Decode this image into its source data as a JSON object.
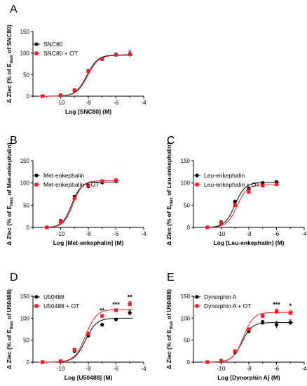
{
  "chart_data": [
    {
      "panel": "A",
      "type": "scatter",
      "xlabel": "Log [SNC80] (M)",
      "ylabel_main": "Δ Zlec (% of E",
      "ylabel_sub": "max",
      "ylabel_end": " of SNC80)",
      "xlim": [
        -12,
        -4
      ],
      "ylim": [
        0,
        150
      ],
      "xticks": [
        "-10",
        "-8",
        "-6",
        "-4"
      ],
      "yticks": [
        "0",
        "50",
        "100",
        "150"
      ],
      "curve": {
        "type": "sigmoid"
      },
      "series": [
        {
          "name": "SNC80",
          "color": "#000000",
          "marker": "circle",
          "x": [
            -11.3,
            -10,
            -9,
            -8,
            -7,
            -6,
            -5
          ],
          "y": [
            0,
            2,
            13,
            59,
            87,
            97,
            98
          ],
          "err": [
            2,
            2,
            3,
            3,
            3,
            3,
            8
          ],
          "fit": {
            "bottom": 0,
            "top": 96,
            "logec50": -8.1,
            "hill": 1.1
          }
        },
        {
          "name": "SNC80 + OT",
          "color": "#e8212b",
          "marker": "square",
          "x": [
            -11.3,
            -10,
            -9,
            -8,
            -7,
            -6,
            -5
          ],
          "y": [
            0,
            2,
            14,
            58,
            86,
            96,
            97
          ],
          "err": [
            2,
            2,
            3,
            3,
            3,
            3,
            6
          ],
          "fit": {
            "bottom": 0,
            "top": 95,
            "logec50": -8.05,
            "hill": 1.1
          }
        }
      ],
      "significance": []
    },
    {
      "panel": "B",
      "type": "scatter",
      "xlabel": "Log [Met-enkephalin] (M)",
      "ylabel_main": "Δ Zlec (% of E",
      "ylabel_sub": "max",
      "ylabel_end": " of Met-enkephalin)",
      "xlim": [
        -12,
        -4
      ],
      "ylim": [
        0,
        150
      ],
      "xticks": [
        "-10",
        "-8",
        "-6",
        "-4"
      ],
      "yticks": [
        "0",
        "50",
        "100",
        "150"
      ],
      "curve": {
        "type": "sigmoid"
      },
      "series": [
        {
          "name": "Met-enkephalin",
          "color": "#000000",
          "marker": "circle",
          "x": [
            -11,
            -10,
            -9,
            -8,
            -7,
            -6
          ],
          "y": [
            0,
            15,
            69,
            92,
            101,
            104
          ],
          "err": [
            2,
            2,
            3,
            3,
            3,
            3
          ],
          "fit": {
            "bottom": 0,
            "top": 102,
            "logec50": -9.2,
            "hill": 1.3
          }
        },
        {
          "name": "Met-enkephalin + OT",
          "color": "#e8212b",
          "marker": "square",
          "x": [
            -11,
            -10,
            -9,
            -8,
            -7,
            -6
          ],
          "y": [
            0,
            13,
            66,
            94,
            104,
            106
          ],
          "err": [
            2,
            2,
            3,
            3,
            3,
            3
          ],
          "fit": {
            "bottom": 0,
            "top": 105,
            "logec50": -9.1,
            "hill": 1.3
          }
        }
      ],
      "significance": []
    },
    {
      "panel": "C",
      "type": "scatter",
      "xlabel": "Log [Leu-enkephalin] (M)",
      "ylabel_main": "Δ Zlec (% of E",
      "ylabel_sub": "max",
      "ylabel_end": " of Leu-enkephalin)",
      "xlim": [
        -12,
        -4
      ],
      "ylim": [
        0,
        150
      ],
      "xticks": [
        "-10",
        "-8",
        "-6",
        "-4"
      ],
      "yticks": [
        "0",
        "50",
        "100",
        "150"
      ],
      "curve": {
        "type": "sigmoid"
      },
      "series": [
        {
          "name": "Leu-enkephalin",
          "color": "#000000",
          "marker": "circle",
          "x": [
            -11,
            -10,
            -9,
            -8,
            -7,
            -6
          ],
          "y": [
            0,
            12,
            58,
            88,
            100,
            102
          ],
          "err": [
            2,
            2,
            3,
            3,
            3,
            3
          ],
          "fit": {
            "bottom": 0,
            "top": 101,
            "logec50": -9.0,
            "hill": 1.2
          }
        },
        {
          "name": "Leu-enkephalin + OT",
          "color": "#e8212b",
          "marker": "square",
          "x": [
            -11,
            -10,
            -9,
            -8,
            -7,
            -6
          ],
          "y": [
            0,
            10,
            50,
            80,
            94,
            97
          ],
          "err": [
            2,
            2,
            3,
            3,
            3,
            3
          ],
          "fit": {
            "bottom": 0,
            "top": 96,
            "logec50": -8.85,
            "hill": 1.2
          }
        }
      ],
      "significance": []
    },
    {
      "panel": "D",
      "type": "scatter",
      "xlabel": "Log [U50488] (M)",
      "ylabel_main": "Δ Zlec (% of E",
      "ylabel_sub": "max",
      "ylabel_end": " of U50488)",
      "xlim": [
        -12,
        -4
      ],
      "ylim": [
        0,
        150
      ],
      "xticks": [
        "-10",
        "-8",
        "-6",
        "-4"
      ],
      "yticks": [
        "0",
        "50",
        "100",
        "150"
      ],
      "curve": {
        "type": "sigmoid"
      },
      "series": [
        {
          "name": "U50488",
          "color": "#000000",
          "marker": "circle",
          "x": [
            -11.3,
            -10,
            -9,
            -8,
            -7,
            -6,
            -5
          ],
          "y": [
            0,
            2,
            25,
            60,
            85,
            97,
            112
          ],
          "err": [
            2,
            2,
            3,
            3,
            3,
            3,
            6
          ],
          "fit": {
            "bottom": 0,
            "top": 100,
            "logec50": -8.2,
            "hill": 1.1
          }
        },
        {
          "name": "U50488 + OT",
          "color": "#e8212b",
          "marker": "square",
          "x": [
            -11.3,
            -10,
            -9,
            -8,
            -7,
            -6,
            -5
          ],
          "y": [
            0,
            2,
            28,
            65,
            105,
            118,
            132
          ],
          "err": [
            2,
            2,
            3,
            3,
            3,
            3,
            6
          ],
          "fit": {
            "bottom": 0,
            "top": 120,
            "logec50": -8.2,
            "hill": 1.1
          }
        }
      ],
      "significance": [
        {
          "x": -7,
          "label": "**"
        },
        {
          "x": -6,
          "label": "***"
        },
        {
          "x": -5,
          "label": "**"
        }
      ]
    },
    {
      "panel": "E",
      "type": "scatter",
      "xlabel": "Log [Dynorphin A] (M)",
      "ylabel_main": "Δ Zlec (% of E",
      "ylabel_sub": "max",
      "ylabel_end": " of U50488)",
      "xlim": [
        -12,
        -4
      ],
      "ylim": [
        0,
        150
      ],
      "xticks": [
        "-10",
        "-8",
        "-6",
        "-4"
      ],
      "yticks": [
        "0",
        "50",
        "100",
        "150"
      ],
      "curve": {
        "type": "sigmoid"
      },
      "series": [
        {
          "name": "Dynorphin A",
          "color": "#000000",
          "marker": "circle",
          "x": [
            -11,
            -10,
            -9,
            -8,
            -7,
            -6,
            -5
          ],
          "y": [
            0,
            2,
            22,
            70,
            90,
            85,
            90
          ],
          "err": [
            2,
            2,
            3,
            3,
            5,
            8,
            6
          ],
          "fit": {
            "bottom": 0,
            "top": 90,
            "logec50": -8.5,
            "hill": 1.2
          }
        },
        {
          "name": "Dynorphin A + OT",
          "color": "#e8212b",
          "marker": "square",
          "x": [
            -11,
            -10,
            -9,
            -8,
            -7,
            -6,
            -5
          ],
          "y": [
            0,
            3,
            25,
            75,
            105,
            115,
            112
          ],
          "err": [
            2,
            2,
            3,
            3,
            4,
            6,
            6
          ],
          "fit": {
            "bottom": 0,
            "top": 113,
            "logec50": -8.4,
            "hill": 1.2
          }
        }
      ],
      "significance": [
        {
          "x": -6,
          "label": "***"
        },
        {
          "x": -5,
          "label": "*"
        }
      ]
    }
  ]
}
